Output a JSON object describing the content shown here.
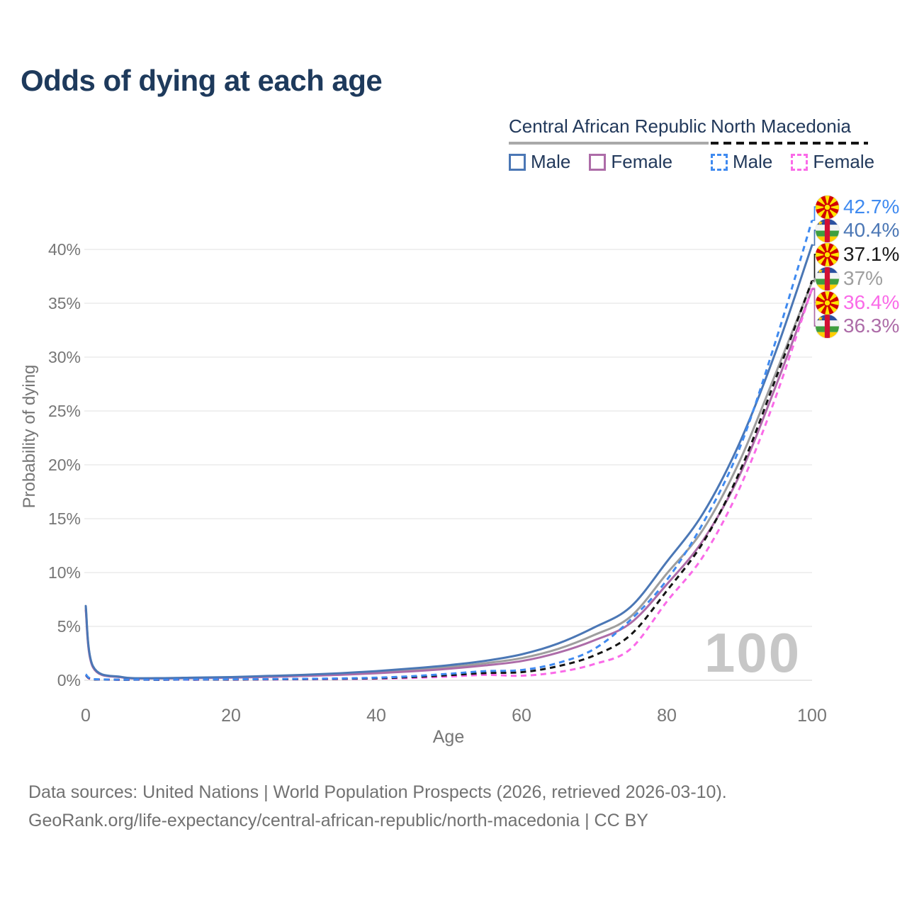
{
  "title": "Odds of dying at each age",
  "legend": {
    "car": {
      "label": "Central African Republic",
      "male": "Male",
      "female": "Female"
    },
    "nm": {
      "label": "North Macedonia",
      "male": "Male",
      "female": "Female"
    }
  },
  "colors": {
    "car_male": "#4b77b5",
    "car_female": "#ad6ca8",
    "car_both": "#9e9e9e",
    "nm_male": "#3f8af0",
    "nm_female": "#fa6ae8",
    "nm_both": "#141414",
    "title_text": "#1e3a5c",
    "axis_text": "#767676",
    "grid": "#ececec",
    "watermark": "#c7c7c7"
  },
  "watermark": "100",
  "end_labels": [
    {
      "flag": "north-macedonia",
      "value": "42.7%",
      "series": "nm-male",
      "color": "#3f8af0"
    },
    {
      "flag": "central-african-republic",
      "value": "40.4%",
      "series": "car-male",
      "color": "#4b77b5"
    },
    {
      "flag": "north-macedonia",
      "value": "37.1%",
      "series": "nm-both",
      "color": "#1a1a1a"
    },
    {
      "flag": "central-african-republic",
      "value": "37%",
      "series": "car-both",
      "color": "#9e9e9e"
    },
    {
      "flag": "north-macedonia",
      "value": "36.4%",
      "series": "nm-female",
      "color": "#fa6ae8"
    },
    {
      "flag": "central-african-republic",
      "value": "36.3%",
      "series": "car-female",
      "color": "#ad6ca8"
    }
  ],
  "footer": {
    "line1": "Data sources: United Nations | World Population Prospects (2026, retrieved 2026-03-10).",
    "line2": "GeoRank.org/life-expectancy/central-african-republic/north-macedonia | CC BY"
  },
  "chart_data": {
    "type": "line",
    "title": "Odds of dying at each age",
    "xlabel": "Age",
    "ylabel": "Probability of dying",
    "x": [
      0,
      1,
      5,
      10,
      15,
      20,
      25,
      30,
      35,
      40,
      45,
      50,
      55,
      60,
      65,
      70,
      75,
      80,
      85,
      90,
      95,
      100
    ],
    "xticks": [
      0,
      20,
      40,
      60,
      80,
      100
    ],
    "yticks": [
      "0%",
      "5%",
      "10%",
      "15%",
      "20%",
      "25%",
      "30%",
      "35%",
      "40%"
    ],
    "xlim": [
      0,
      100
    ],
    "ylim_percent": [
      0,
      44
    ],
    "grid": true,
    "legend_position": "top-right",
    "units": "percent probability of dying at each age",
    "series": [
      {
        "id": "car-both",
        "name": "Central African Republic — Both sexes",
        "color": "#9e9e9e",
        "dash": false,
        "values": [
          6.7,
          1.25,
          0.28,
          0.18,
          0.22,
          0.27,
          0.35,
          0.45,
          0.57,
          0.75,
          0.95,
          1.22,
          1.58,
          2.05,
          2.9,
          4.2,
          5.9,
          9.9,
          14.0,
          20.3,
          28.5,
          37.0
        ]
      },
      {
        "id": "car-female",
        "name": "Central African Republic — Female",
        "color": "#ad6ca8",
        "dash": false,
        "values": [
          6.5,
          1.2,
          0.26,
          0.17,
          0.2,
          0.24,
          0.31,
          0.4,
          0.5,
          0.65,
          0.83,
          1.07,
          1.38,
          1.78,
          2.55,
          3.7,
          5.3,
          8.9,
          13.0,
          19.0,
          27.3,
          36.3
        ]
      },
      {
        "id": "car-male",
        "name": "Central African Republic — Male",
        "color": "#4b77b5",
        "dash": false,
        "values": [
          6.9,
          1.3,
          0.3,
          0.2,
          0.25,
          0.3,
          0.4,
          0.5,
          0.65,
          0.85,
          1.1,
          1.4,
          1.8,
          2.4,
          3.4,
          4.9,
          6.8,
          11.0,
          15.5,
          22.0,
          30.5,
          40.4
        ]
      },
      {
        "id": "nm-female",
        "name": "North Macedonia — Female",
        "color": "#fa6ae8",
        "dash": true,
        "values": [
          0.45,
          0.07,
          0.03,
          0.03,
          0.04,
          0.05,
          0.07,
          0.09,
          0.11,
          0.15,
          0.22,
          0.34,
          0.5,
          0.42,
          0.75,
          1.5,
          2.9,
          7.3,
          11.5,
          17.8,
          26.3,
          36.4
        ]
      },
      {
        "id": "nm-both",
        "name": "North Macedonia — Both sexes",
        "color": "#141414",
        "dash": true,
        "values": [
          0.5,
          0.08,
          0.04,
          0.04,
          0.06,
          0.07,
          0.09,
          0.11,
          0.14,
          0.19,
          0.3,
          0.47,
          0.67,
          0.75,
          1.3,
          2.3,
          4.2,
          8.3,
          12.8,
          19.3,
          28.0,
          37.1
        ]
      },
      {
        "id": "nm-male",
        "name": "North Macedonia — Male",
        "color": "#3f8af0",
        "dash": true,
        "values": [
          0.55,
          0.1,
          0.05,
          0.05,
          0.07,
          0.09,
          0.11,
          0.13,
          0.17,
          0.24,
          0.38,
          0.6,
          0.85,
          0.95,
          1.6,
          2.9,
          5.6,
          9.3,
          14.6,
          21.5,
          31.5,
          42.7
        ]
      }
    ]
  }
}
